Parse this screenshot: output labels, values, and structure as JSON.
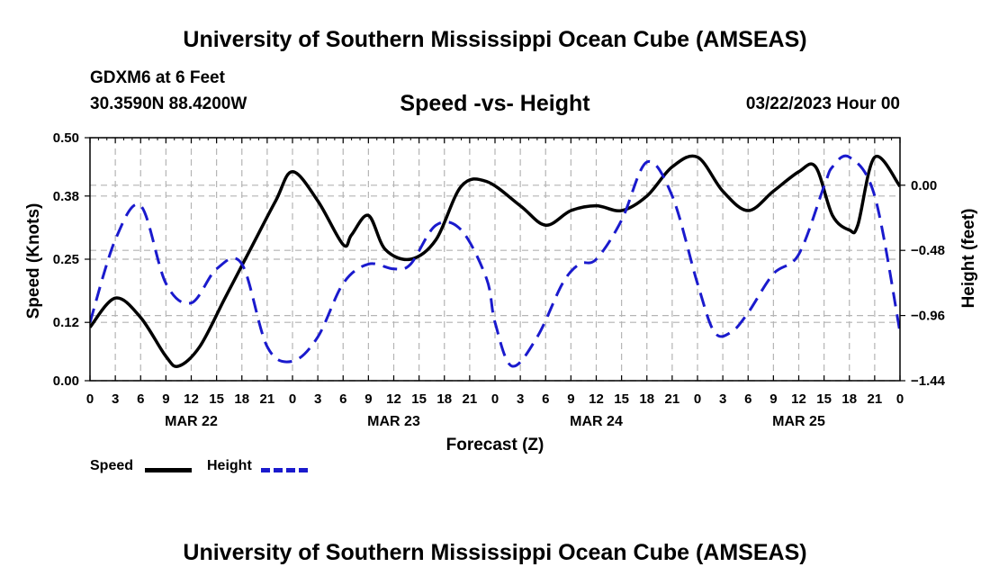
{
  "header": {
    "title": "University of Southern Mississippi Ocean Cube (AMSEAS)",
    "station": "GDXM6 at 6 Feet",
    "coords": "30.3590N  88.4200W",
    "subtitle": "Speed -vs- Height",
    "datetime": "03/22/2023 Hour 00"
  },
  "footer": {
    "title": "University of Southern Mississippi Ocean Cube (AMSEAS)"
  },
  "legend": {
    "speed_label": "Speed",
    "height_label": "Height"
  },
  "colors": {
    "speed": "#000000",
    "height": "#1a1acd",
    "grid": "#b4b4b4"
  },
  "chart_data": {
    "type": "line",
    "xlabel": "Forecast (Z)",
    "ylabel_left": "Speed (Knots)",
    "ylabel_right": "Height (feet)",
    "xlim_hours": [
      0,
      96
    ],
    "x_tick_labels": [
      "0",
      "3",
      "6",
      "9",
      "12",
      "15",
      "18",
      "21",
      "0",
      "3",
      "6",
      "9",
      "12",
      "15",
      "18",
      "21",
      "0",
      "3",
      "6",
      "9",
      "12",
      "15",
      "18",
      "21",
      "0",
      "3",
      "6",
      "9",
      "12",
      "15",
      "18",
      "21",
      "0"
    ],
    "date_labels": [
      {
        "label": "MAR 22",
        "hour": 12
      },
      {
        "label": "MAR 23",
        "hour": 36
      },
      {
        "label": "MAR 24",
        "hour": 60
      },
      {
        "label": "MAR 25",
        "hour": 84
      }
    ],
    "ylim_left": [
      0,
      0.5
    ],
    "y_ticks_left": [
      0.0,
      0.12,
      0.25,
      0.38,
      0.5
    ],
    "y_tick_labels_left": [
      "0.00",
      "0.12",
      "0.25",
      "0.38",
      "0.50"
    ],
    "ylim_right": [
      -1.44,
      0.35
    ],
    "y_ticks_right": [
      -1.44,
      -0.96,
      -0.48,
      0.0
    ],
    "y_tick_labels_right": [
      "−1.44",
      "−0.96",
      "−0.48",
      "0.00"
    ],
    "grid": true,
    "series": [
      {
        "name": "Speed",
        "axis": "left",
        "style": "solid",
        "x": [
          0,
          3,
          6,
          9,
          10.5,
          13,
          16,
          19,
          22,
          24,
          27,
          30,
          31,
          33,
          35,
          38,
          41,
          44,
          47,
          51,
          54,
          57,
          60,
          63,
          66,
          69,
          72,
          75,
          78,
          81,
          84,
          86,
          88,
          90,
          91,
          93,
          96
        ],
        "values": [
          0.11,
          0.17,
          0.13,
          0.05,
          0.03,
          0.07,
          0.17,
          0.27,
          0.37,
          0.43,
          0.37,
          0.28,
          0.3,
          0.34,
          0.27,
          0.25,
          0.29,
          0.4,
          0.41,
          0.36,
          0.32,
          0.35,
          0.36,
          0.35,
          0.38,
          0.44,
          0.46,
          0.39,
          0.35,
          0.39,
          0.43,
          0.44,
          0.34,
          0.31,
          0.32,
          0.46,
          0.4
        ]
      },
      {
        "name": "Height",
        "axis": "left",
        "style": "dashed",
        "x": [
          0,
          3,
          6,
          9,
          12,
          15,
          18,
          21,
          24,
          27,
          30,
          33,
          36,
          38,
          41,
          44,
          47,
          48,
          50,
          53,
          56,
          58,
          60,
          63,
          66,
          69,
          72,
          74,
          76,
          78,
          81,
          84,
          87,
          88,
          90,
          93,
          96
        ],
        "values": [
          0.12,
          0.29,
          0.36,
          0.2,
          0.16,
          0.23,
          0.24,
          0.07,
          0.04,
          0.09,
          0.2,
          0.24,
          0.23,
          0.24,
          0.32,
          0.31,
          0.21,
          0.12,
          0.03,
          0.09,
          0.2,
          0.24,
          0.25,
          0.33,
          0.45,
          0.38,
          0.2,
          0.1,
          0.1,
          0.14,
          0.22,
          0.26,
          0.4,
          0.44,
          0.46,
          0.38,
          0.1
        ]
      }
    ]
  }
}
